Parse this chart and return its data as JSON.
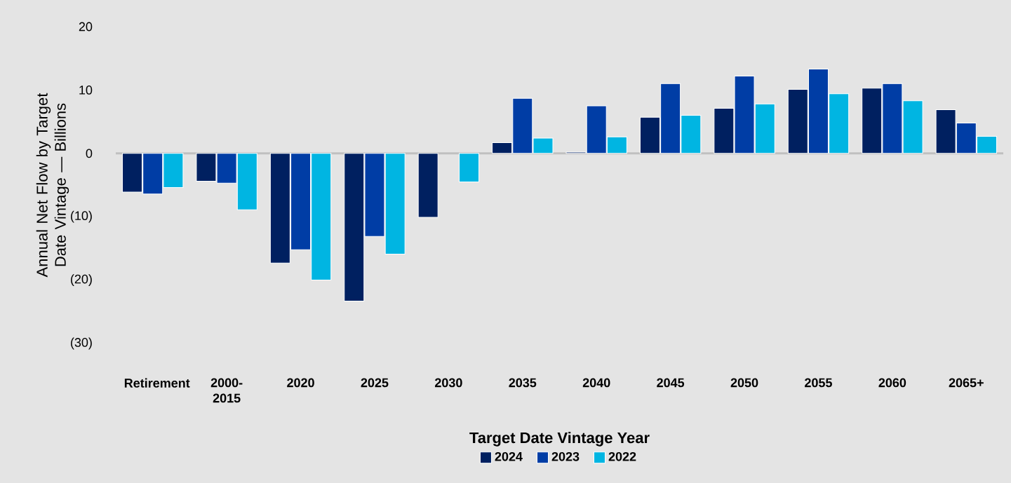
{
  "chart_data": {
    "type": "bar",
    "ylabel": "Annual Net Flow by Target Date Vintage — Billions",
    "xlabel": "Target Date Vintage Year",
    "categories": [
      "Retirement",
      "2000-2015",
      "2020",
      "2025",
      "2030",
      "2035",
      "2040",
      "2045",
      "2050",
      "2055",
      "2060",
      "2065+"
    ],
    "series": [
      {
        "name": "2024",
        "color": "#002060",
        "values": [
          -6.1,
          -4.4,
          -17.3,
          -23.3,
          -10.1,
          1.7,
          0.2,
          5.7,
          7.1,
          10.1,
          10.3,
          6.9
        ]
      },
      {
        "name": "2023",
        "color": "#003da5",
        "values": [
          -6.4,
          -4.7,
          -15.2,
          -13.1,
          null,
          8.7,
          7.5,
          11.0,
          12.2,
          13.3,
          11.0,
          4.8
        ]
      },
      {
        "name": "2022",
        "color": "#00b5e2",
        "values": [
          -5.4,
          -8.9,
          -20.0,
          -15.9,
          -4.5,
          2.4,
          2.6,
          6.0,
          7.8,
          9.4,
          8.3,
          2.7
        ]
      }
    ],
    "ylim": [
      -30,
      20
    ],
    "yticks": [
      20,
      10,
      0,
      {
        "value": -10,
        "label": "(10)"
      },
      {
        "value": -20,
        "label": "(20)"
      },
      {
        "value": -30,
        "label": "(30)"
      }
    ],
    "legend": "bottom"
  }
}
